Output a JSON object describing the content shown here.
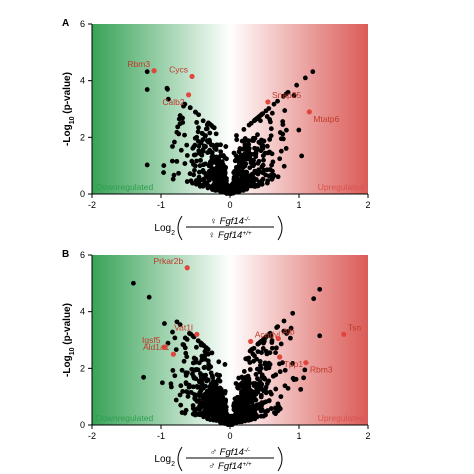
{
  "chart_data": [
    {
      "type": "scatter",
      "panel_label": "A",
      "ylabel": "-Log",
      "ylabel_sub": "10",
      "ylabel_tail": " (p-value)",
      "xlabel_prefix": "Log",
      "xlabel_sub": "2",
      "xlabel_numerator": "Fgf14",
      "xlabel_numerator_sup": "-/-",
      "xlabel_denominator": "Fgf14",
      "xlabel_denominator_sup": "+/+",
      "xlabel_symbol": "♀",
      "xlim": [
        -2,
        2
      ],
      "ylim": [
        0,
        6
      ],
      "xticks": [
        "-2",
        "-1",
        "0",
        "1",
        "2"
      ],
      "yticks": [
        "0",
        "2",
        "4",
        "6"
      ],
      "left_region_label": "Downregulated",
      "right_region_label": "Upregulated",
      "colors": {
        "down": "#2e9e4f",
        "up": "#d9534f",
        "highlight": "#e0463c",
        "point": "#000000"
      },
      "highlighted": [
        {
          "label": "Rbm3",
          "x": -1.1,
          "y": 4.35
        },
        {
          "label": "Cycs",
          "x": -0.55,
          "y": 4.15
        },
        {
          "label": "Calb2",
          "x": -0.6,
          "y": 3.5
        },
        {
          "label": "Snap25",
          "x": 0.55,
          "y": 3.25
        },
        {
          "label": "Mtatp6",
          "x": 1.15,
          "y": 2.9
        }
      ],
      "cloud": {
        "count": 700,
        "max_y": 3.4,
        "xmin": -1.2,
        "xmax": 1.2,
        "seed": 11
      }
    },
    {
      "type": "scatter",
      "panel_label": "B",
      "ylabel": "-Log",
      "ylabel_sub": "10",
      "ylabel_tail": " (p-value)",
      "xlabel_prefix": "Log",
      "xlabel_sub": "2",
      "xlabel_numerator": "Fgf14",
      "xlabel_numerator_sup": "-/-",
      "xlabel_denominator": "Fgf14",
      "xlabel_denominator_sup": "+/+",
      "xlabel_symbol": "♂",
      "xlim": [
        -2,
        2
      ],
      "ylim": [
        0,
        6
      ],
      "xticks": [
        "-2",
        "-1",
        "0",
        "1",
        "2"
      ],
      "yticks": [
        "0",
        "2",
        "4",
        "6"
      ],
      "left_region_label": "Downregulated",
      "right_region_label": "Upregulated",
      "colors": {
        "down": "#2e9e4f",
        "up": "#d9534f",
        "highlight": "#e0463c",
        "point": "#000000"
      },
      "highlighted": [
        {
          "label": "Prkar2b",
          "x": -0.62,
          "y": 5.55
        },
        {
          "label": "Vat1l",
          "x": -0.48,
          "y": 3.2
        },
        {
          "label": "Igsf5",
          "x": -0.95,
          "y": 2.75
        },
        {
          "label": "Ald1a1",
          "x": -0.82,
          "y": 2.5
        },
        {
          "label": "Acadvl",
          "x": 0.3,
          "y": 2.95
        },
        {
          "label": "Alb",
          "x": 0.7,
          "y": 3.05
        },
        {
          "label": "Tpp1",
          "x": 0.72,
          "y": 2.4
        },
        {
          "label": "Tsn",
          "x": 1.65,
          "y": 3.2
        },
        {
          "label": "Rbm3",
          "x": 1.1,
          "y": 2.2
        }
      ],
      "cloud": {
        "count": 900,
        "max_y": 3.6,
        "xmin": -1.4,
        "xmax": 1.3,
        "seed": 29
      }
    }
  ]
}
